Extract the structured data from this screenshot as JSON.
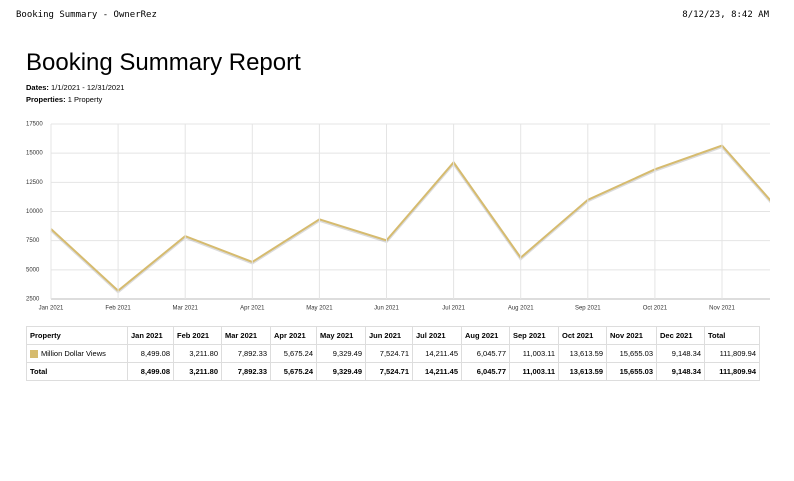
{
  "header": {
    "left": "Booking Summary - OwnerRez",
    "right": "8/12/23, 8:42 AM"
  },
  "title": "Booking Summary Report",
  "meta": [
    {
      "label": "Dates:",
      "value": "1/1/2021 - 12/31/2021"
    },
    {
      "label": "Properties:",
      "value": "1 Property"
    }
  ],
  "chart_data": {
    "type": "line",
    "categories": [
      "Jan 2021",
      "Feb 2021",
      "Mar 2021",
      "Apr 2021",
      "May 2021",
      "Jun 2021",
      "Jul 2021",
      "Aug 2021",
      "Sep 2021",
      "Oct 2021",
      "Nov 2021",
      null
    ],
    "values": [
      8499.08,
      3211.8,
      7892.33,
      5675.24,
      9329.49,
      7524.71,
      14211.45,
      6045.77,
      11003.11,
      13613.59,
      15655.03,
      9148.34
    ],
    "color": "#d6bb6e",
    "ylim": [
      2500,
      17500
    ],
    "yticks": [
      2500,
      5000,
      7500,
      10000,
      12500,
      15000,
      17500
    ],
    "grid": true
  },
  "table": {
    "header": [
      "Property",
      "Jan 2021",
      "Feb 2021",
      "Mar 2021",
      "Apr 2021",
      "May 2021",
      "Jun 2021",
      "Jul 2021",
      "Aug 2021",
      "Sep 2021",
      "Oct 2021",
      "Nov 2021",
      "Dec 2021",
      "Total"
    ],
    "swatch": "#d6bb6e",
    "rows": [
      [
        "Million Dollar Views",
        "8,499.08",
        "3,211.80",
        "7,892.33",
        "5,675.24",
        "9,329.49",
        "7,524.71",
        "14,211.45",
        "6,045.77",
        "11,003.11",
        "13,613.59",
        "15,655.03",
        "9,148.34",
        "111,809.94"
      ],
      [
        "Total",
        "8,499.08",
        "3,211.80",
        "7,892.33",
        "5,675.24",
        "9,329.49",
        "7,524.71",
        "14,211.45",
        "6,045.77",
        "11,003.11",
        "13,613.59",
        "15,655.03",
        "9,148.34",
        "111,809.94"
      ]
    ]
  }
}
